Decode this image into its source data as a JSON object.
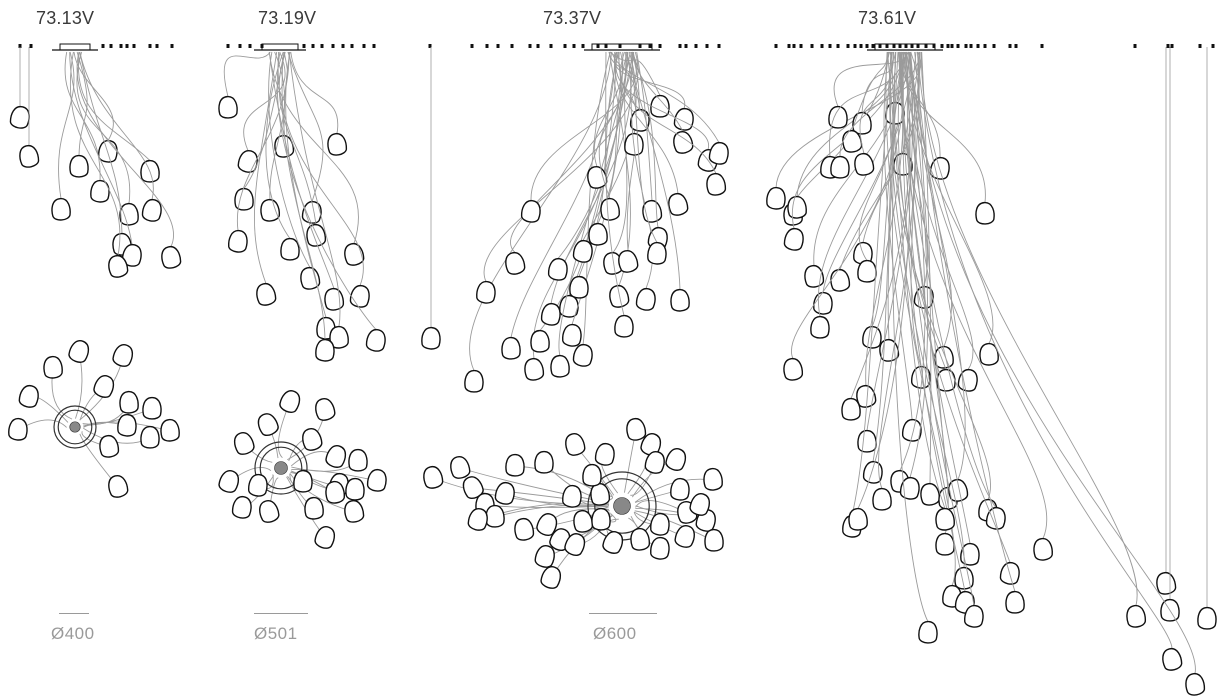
{
  "models": [
    {
      "id": "m1",
      "name": "73.13V",
      "diameter": "Ø400"
    },
    {
      "id": "m2",
      "name": "73.19V",
      "diameter": "Ø501"
    },
    {
      "id": "m3",
      "name": "73.37V",
      "diameter": "Ø600"
    },
    {
      "id": "m4",
      "name": "73.61V",
      "diameter": ""
    }
  ]
}
